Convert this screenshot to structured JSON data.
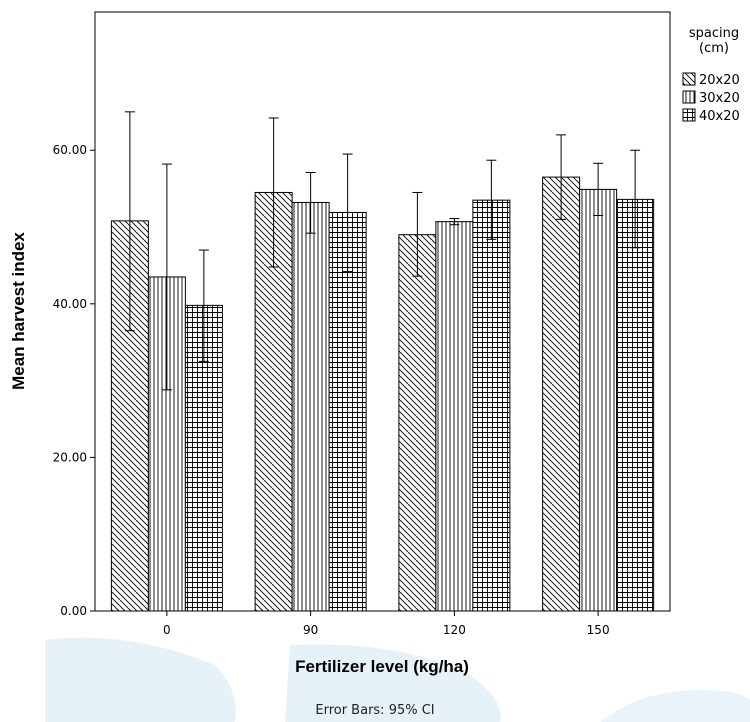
{
  "chart_data": {
    "type": "bar",
    "title": "",
    "xlabel": "Fertilizer level (kg/ha)",
    "ylabel": "Mean harvest index",
    "categories": [
      "0",
      "90",
      "120",
      "150"
    ],
    "ylim": [
      0,
      78
    ],
    "yticks": [
      0,
      20,
      40,
      60
    ],
    "ytick_labels": [
      "0.00",
      "20.00",
      "40.00",
      "60.00"
    ],
    "grid": false,
    "legend": {
      "title": "spacing\n(cm)",
      "placement": "right-top"
    },
    "series": [
      {
        "name": "20x20",
        "pattern": "diagonal",
        "values": [
          50.8,
          54.5,
          49.0,
          56.5
        ],
        "ci_low": [
          36.5,
          44.8,
          43.6,
          51.0
        ],
        "ci_high": [
          65.0,
          64.2,
          54.5,
          62.0
        ]
      },
      {
        "name": "30x20",
        "pattern": "vertical",
        "values": [
          43.5,
          53.2,
          50.7,
          54.9
        ],
        "ci_low": [
          28.8,
          49.2,
          50.3,
          51.5
        ],
        "ci_high": [
          58.2,
          57.1,
          51.1,
          58.3
        ]
      },
      {
        "name": "40x20",
        "pattern": "crosshatch",
        "values": [
          39.8,
          51.9,
          53.5,
          53.6
        ],
        "ci_low": [
          32.5,
          44.2,
          48.4,
          47.3
        ],
        "ci_high": [
          47.0,
          59.5,
          58.7,
          60.0
        ]
      }
    ],
    "footnote": "Error Bars: 95% CI"
  },
  "colors": {
    "axis": "#000000",
    "bar_fill": "#ffffff",
    "hatch": "#000000",
    "watermark": "#e4f0f8"
  }
}
